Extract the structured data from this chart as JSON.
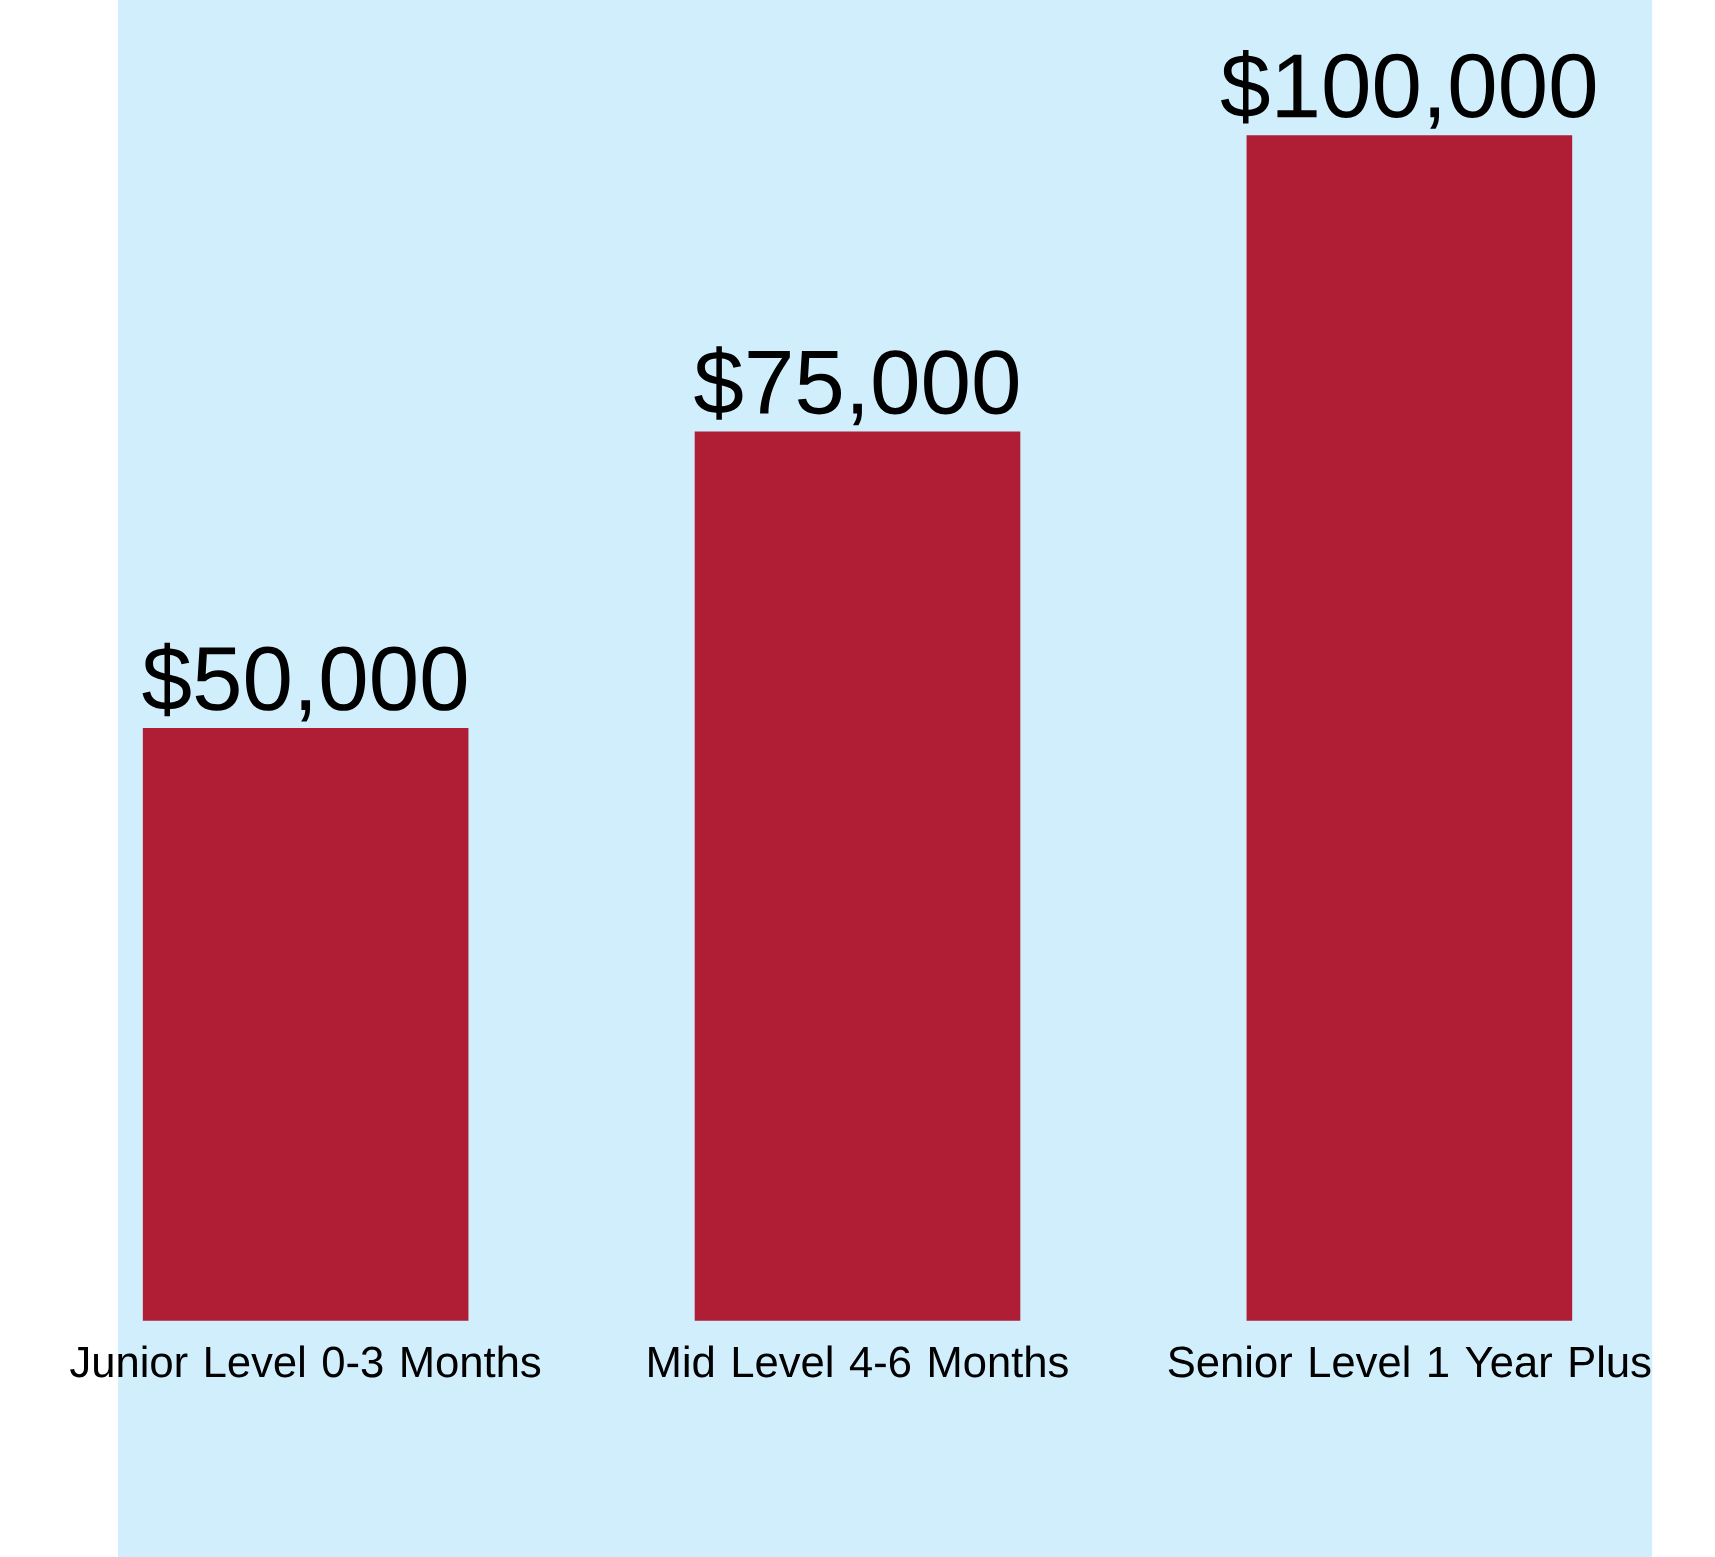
{
  "chart_data": {
    "type": "bar",
    "categories": [
      "Junior Level 0-3 Months",
      "Mid Level 4-6 Months",
      "Senior Level 1 Year Plus"
    ],
    "values": [
      50000,
      75000,
      100000
    ],
    "color": "#b01e35",
    "value_labels": [
      "$50,000",
      "$75,000",
      "$100,000"
    ]
  }
}
